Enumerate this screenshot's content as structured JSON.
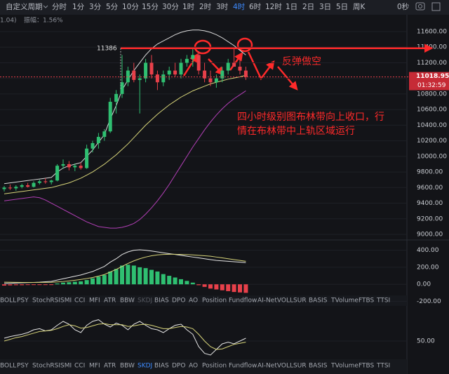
{
  "toolbar": {
    "period_select": "自定义周期",
    "intervals": [
      "分时",
      "1分",
      "3分",
      "5分",
      "10分",
      "15分",
      "30分",
      "1时",
      "2时",
      "3时",
      "4时",
      "6时",
      "12时",
      "1日",
      "2日",
      "3日",
      "5日",
      "周K"
    ],
    "countdown": "0秒"
  },
  "info": {
    "prev": "1.04)",
    "amplitude": "振幅：1.56%"
  },
  "price_chart": {
    "ylim": [
      8928,
      11645
    ],
    "yticks": [
      {
        "value": 11600,
        "label": "11600.00"
      },
      {
        "value": 11400,
        "label": "11400.00"
      },
      {
        "value": 11200,
        "label": "11200.00"
      },
      {
        "value": 11000,
        "label": "11000.00"
      },
      {
        "value": 10800,
        "label": "10800.00"
      },
      {
        "value": 10600,
        "label": "10600.00"
      },
      {
        "value": 10400,
        "label": "10400.00"
      },
      {
        "value": 10200,
        "label": "10200.00"
      },
      {
        "value": 10000,
        "label": "10000.00"
      },
      {
        "value": 9800,
        "label": "9800.00"
      },
      {
        "value": 9600,
        "label": "9600.00"
      },
      {
        "value": 9400,
        "label": "9400.00"
      },
      {
        "value": 9200,
        "label": "9200.00"
      },
      {
        "value": 9000,
        "label": "9000.00"
      }
    ],
    "candles": [
      [
        9580,
        9620,
        9550,
        9600
      ],
      [
        9600,
        9640,
        9570,
        9590
      ],
      [
        9590,
        9630,
        9560,
        9610
      ],
      [
        9610,
        9650,
        9590,
        9630
      ],
      [
        9630,
        9660,
        9600,
        9610
      ],
      [
        9610,
        9680,
        9600,
        9660
      ],
      [
        9660,
        9700,
        9640,
        9680
      ],
      [
        9680,
        9720,
        9650,
        9670
      ],
      [
        9670,
        9700,
        9640,
        9690
      ],
      [
        9690,
        9900,
        9680,
        9880
      ],
      [
        9880,
        9960,
        9840,
        9900
      ],
      [
        9900,
        9940,
        9820,
        9860
      ],
      [
        9860,
        9910,
        9810,
        9880
      ],
      [
        9880,
        9920,
        9830,
        9850
      ],
      [
        9850,
        10150,
        9840,
        10100
      ],
      [
        10100,
        10200,
        10050,
        10170
      ],
      [
        10170,
        10300,
        10100,
        10250
      ],
      [
        10250,
        10350,
        10200,
        10320
      ],
      [
        10320,
        10750,
        10300,
        10700
      ],
      [
        10700,
        10850,
        10550,
        10800
      ],
      [
        10800,
        11300,
        10750,
        10950
      ],
      [
        10950,
        11150,
        10900,
        11100
      ],
      [
        11100,
        11200,
        10950,
        10980
      ],
      [
        10980,
        11050,
        10550,
        11000
      ],
      [
        11000,
        11250,
        10950,
        11200
      ],
      [
        11200,
        11300,
        11000,
        11050
      ],
      [
        11050,
        11100,
        10850,
        10950
      ],
      [
        10950,
        11100,
        10900,
        11050
      ],
      [
        11050,
        11150,
        10980,
        11100
      ],
      [
        11100,
        11200,
        11020,
        11050
      ],
      [
        11050,
        11250,
        11000,
        11200
      ],
      [
        11200,
        11300,
        11150,
        11250
      ],
      [
        11250,
        11380,
        11150,
        11300
      ],
      [
        11300,
        11350,
        11050,
        11100
      ],
      [
        11100,
        11200,
        10950,
        11000
      ],
      [
        11000,
        11100,
        10900,
        10950
      ],
      [
        10950,
        11050,
        10880,
        11000
      ],
      [
        11000,
        11150,
        10950,
        11100
      ],
      [
        11100,
        11250,
        11050,
        11200
      ],
      [
        11200,
        11380,
        11150,
        11150
      ],
      [
        11150,
        11250,
        11050,
        11100
      ],
      [
        11100,
        11150,
        10980,
        11019
      ]
    ],
    "boll_upper": [
      9650,
      9660,
      9670,
      9680,
      9690,
      9700,
      9710,
      9720,
      9730,
      9800,
      9850,
      9880,
      9900,
      9920,
      10000,
      10080,
      10180,
      10280,
      10480,
      10650,
      10850,
      10980,
      11100,
      11200,
      11300,
      11380,
      11440,
      11480,
      11520,
      11560,
      11590,
      11610,
      11620,
      11620,
      11610,
      11590,
      11560,
      11520,
      11470,
      11420,
      11360,
      11300
    ],
    "boll_mid": [
      9520,
      9530,
      9540,
      9550,
      9560,
      9570,
      9580,
      9590,
      9600,
      9620,
      9640,
      9660,
      9690,
      9720,
      9760,
      9800,
      9850,
      9900,
      9960,
      10020,
      10090,
      10160,
      10240,
      10320,
      10400,
      10470,
      10540,
      10600,
      10660,
      10710,
      10760,
      10800,
      10840,
      10870,
      10900,
      10930,
      10950,
      10970,
      10990,
      11005,
      11020,
      11040
    ],
    "boll_lower": [
      9430,
      9440,
      9450,
      9460,
      9470,
      9480,
      9470,
      9440,
      9400,
      9360,
      9320,
      9280,
      9240,
      9200,
      9160,
      9130,
      9100,
      9090,
      9080,
      9080,
      9090,
      9110,
      9140,
      9190,
      9260,
      9340,
      9430,
      9530,
      9640,
      9760,
      9880,
      10000,
      10120,
      10230,
      10340,
      10440,
      10530,
      10610,
      10680,
      10740,
      10790,
      10840
    ],
    "high_marker": 11386,
    "last_price": 11018.95,
    "countdown": "01:32:59",
    "annotations": {
      "short": "反弹做空",
      "comment": [
        "四小时级别图布林带向上收口，行",
        "情在布林带中上轨区域运行"
      ]
    }
  },
  "macd_chart": {
    "ylim": [
      -130,
      520
    ],
    "yticks": [
      {
        "value": 400,
        "label": "400.00"
      },
      {
        "value": 200,
        "label": "200.00"
      },
      {
        "value": 0,
        "label": "0.00"
      },
      {
        "value": -200,
        "label": "-200.00"
      }
    ],
    "histogram": [
      -15,
      -12,
      -10,
      -10,
      -8,
      -8,
      -6,
      -5,
      -5,
      10,
      20,
      25,
      30,
      35,
      50,
      70,
      90,
      110,
      150,
      180,
      220,
      230,
      220,
      200,
      190,
      170,
      150,
      120,
      100,
      80,
      60,
      40,
      20,
      -10,
      -30,
      -50,
      -60,
      -70,
      -80,
      -90,
      -95,
      -100
    ],
    "dif": [
      10,
      12,
      15,
      18,
      20,
      22,
      25,
      30,
      35,
      50,
      65,
      80,
      95,
      110,
      130,
      150,
      180,
      210,
      260,
      300,
      350,
      380,
      400,
      405,
      400,
      390,
      380,
      370,
      360,
      350,
      340,
      330,
      320,
      310,
      300,
      290,
      280,
      275,
      270,
      265,
      260,
      255
    ],
    "dea": [
      25,
      24,
      23,
      22,
      22,
      22,
      22,
      23,
      24,
      28,
      33,
      40,
      48,
      57,
      68,
      80,
      96,
      115,
      145,
      175,
      210,
      245,
      275,
      300,
      320,
      335,
      345,
      350,
      352,
      352,
      350,
      348,
      345,
      340,
      335,
      330,
      320,
      310,
      300,
      290,
      280,
      270
    ]
  },
  "kdj_chart": {
    "ylim": [
      0,
      100
    ],
    "yticks": [
      {
        "value": 50,
        "label": "50.00"
      }
    ],
    "k": [
      55,
      58,
      60,
      62,
      65,
      70,
      72,
      68,
      70,
      78,
      85,
      80,
      70,
      65,
      78,
      85,
      88,
      80,
      75,
      82,
      78,
      70,
      80,
      85,
      78,
      72,
      70,
      65,
      72,
      78,
      80,
      70,
      62,
      40,
      28,
      25,
      35,
      45,
      48,
      45,
      50,
      55
    ],
    "d": [
      50,
      53,
      56,
      58,
      61,
      64,
      67,
      68,
      69,
      72,
      76,
      79,
      77,
      73,
      74,
      77,
      80,
      81,
      79,
      79,
      79,
      76,
      77,
      79,
      80,
      78,
      75,
      72,
      72,
      74,
      76,
      75,
      72,
      62,
      50,
      40,
      35,
      36,
      40,
      44,
      46,
      48
    ]
  },
  "indicator_tabs": [
    [
      "BOLL",
      "PSY",
      "StochRSI",
      "SMI",
      "CCI",
      "MFI",
      "ATR",
      "BBW",
      "SKDJ",
      "BIAS",
      "DPO",
      "AO",
      "Position",
      "Fundflow",
      "AI-NetVOL",
      "LSUR",
      "BASIS",
      "TVolume",
      "FTBS",
      "TTSI"
    ],
    [
      "BOLL",
      "PSY",
      "StochRSI",
      "SMI",
      "CCI",
      "MFI",
      "ATR",
      "BBW",
      "SKDJ",
      "BIAS",
      "DPO",
      "AO",
      "Position",
      "Fundflow",
      "AI-NetVOL",
      "LSUR",
      "BASIS",
      "TVolume",
      "FTBS",
      "TTSI"
    ]
  ]
}
